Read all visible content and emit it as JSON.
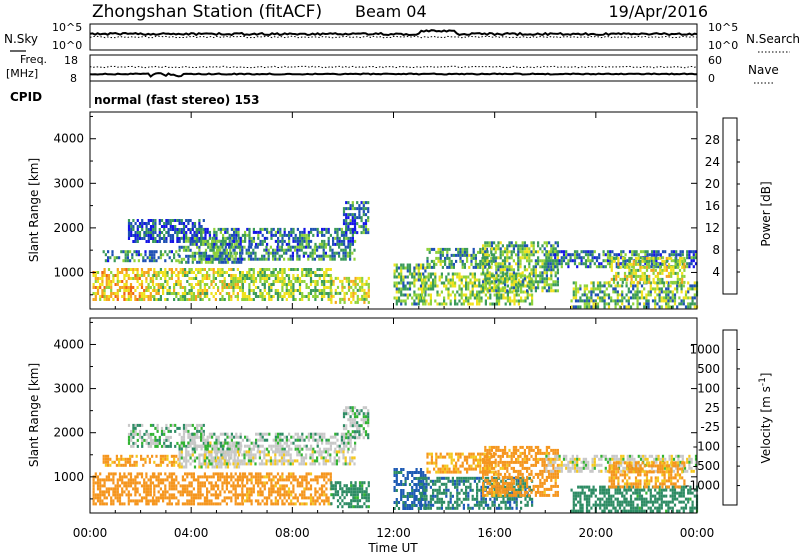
{
  "header": {
    "station": "Zhongshan Station (fitACF)",
    "beam": "Beam 04",
    "date": "19/Apr/2016"
  },
  "top_panels": {
    "nsky": {
      "left_label": "N.Sky",
      "right_label": "N.Search",
      "left_ticks": [
        "10^5",
        "10^0"
      ],
      "right_ticks": [
        "10^5",
        "10^0"
      ]
    },
    "freq": {
      "left_label_1": "Freq.",
      "left_label_2": "[MHz]",
      "right_label": "Nave",
      "left_ticks": [
        "18",
        "8"
      ],
      "right_ticks": [
        "60",
        "0"
      ]
    },
    "cpid": {
      "label": "CPID",
      "text": "normal (fast stereo) 153"
    }
  },
  "power_panel": {
    "ylabel": "Slant Range [km]",
    "yticks": [
      "1000",
      "2000",
      "3000",
      "4000"
    ],
    "colorbar": {
      "label": "Power [dB]",
      "ticks": [
        "4",
        "8",
        "12",
        "16",
        "20",
        "24",
        "28"
      ],
      "colors": [
        "#1414e6",
        "#1e50b4",
        "#3a9a5a",
        "#8fd23a",
        "#f0e21e",
        "#f5a51e",
        "#f06414",
        "#e61414"
      ]
    }
  },
  "velocity_panel": {
    "ylabel": "Slant Range [km]",
    "yticks": [
      "1000",
      "2000",
      "3000",
      "4000"
    ],
    "colorbar": {
      "label": "Velocity [m s",
      "label_sup": "-1",
      "label_end": "]",
      "ticks": [
        "1000",
        "500",
        "100",
        "25",
        "-25",
        "-100",
        "-500",
        "-1000"
      ],
      "colors": [
        "#1414dc",
        "#1e5ab4",
        "#2d8c64",
        "#32b432",
        "#c8c8c8",
        "#f5c81e",
        "#f5961e",
        "#f06414",
        "#e61414"
      ]
    }
  },
  "xaxis": {
    "label": "Time UT",
    "ticks": [
      "00:00",
      "04:00",
      "08:00",
      "12:00",
      "16:00",
      "20:00",
      "00:00"
    ]
  },
  "chart_data": {
    "type": "heatmap",
    "title": "Zhongshan Station (fitACF)",
    "xlabel": "Time UT",
    "ylabel": "Slant Range [km]",
    "xlim_hours": [
      0,
      24
    ],
    "ylim_km": [
      180,
      4600
    ],
    "power_range_db": [
      0,
      30
    ],
    "velocity_range_ms": [
      -1000,
      1000
    ],
    "regions": [
      {
        "t0": 0.1,
        "t1": 2.5,
        "r0": 400,
        "r1": 1100,
        "power": 20,
        "velocity": -300
      },
      {
        "t0": 0.5,
        "t1": 3.5,
        "r0": 1250,
        "r1": 1500,
        "power": 9,
        "velocity": -150
      },
      {
        "t0": 2.5,
        "t1": 6.0,
        "r0": 400,
        "r1": 1100,
        "power": 16,
        "velocity": -300
      },
      {
        "t0": 1.5,
        "t1": 4.5,
        "r0": 1700,
        "r1": 2200,
        "power": 6,
        "velocity": 10
      },
      {
        "t0": 3.5,
        "t1": 6.0,
        "r0": 1200,
        "r1": 1800,
        "power": 10,
        "velocity": 0
      },
      {
        "t0": 4.0,
        "t1": 10.5,
        "r0": 1600,
        "r1": 2000,
        "power": 8,
        "velocity": 5
      },
      {
        "t0": 4.5,
        "t1": 10.5,
        "r0": 1300,
        "r1": 1600,
        "power": 9,
        "velocity": -10
      },
      {
        "t0": 6.0,
        "t1": 9.5,
        "r0": 400,
        "r1": 1100,
        "power": 14,
        "velocity": -200
      },
      {
        "t0": 9.5,
        "t1": 11.0,
        "r0": 300,
        "r1": 900,
        "power": 17,
        "velocity": 50
      },
      {
        "t0": 10.0,
        "t1": 11.0,
        "r0": 1900,
        "r1": 2600,
        "power": 7,
        "velocity": 10
      },
      {
        "t0": 12.0,
        "t1": 13.3,
        "r0": 300,
        "r1": 1200,
        "power": 12,
        "velocity": 150
      },
      {
        "t0": 13.3,
        "t1": 16.0,
        "r0": 1100,
        "r1": 1550,
        "power": 11,
        "velocity": -120
      },
      {
        "t0": 13.0,
        "t1": 17.5,
        "r0": 300,
        "r1": 1000,
        "power": 14,
        "velocity": 80
      },
      {
        "t0": 15.5,
        "t1": 18.5,
        "r0": 600,
        "r1": 1700,
        "power": 12,
        "velocity": -200
      },
      {
        "t0": 18.0,
        "t1": 24.0,
        "r0": 1100,
        "r1": 1500,
        "power": 8,
        "velocity": -10
      },
      {
        "t0": 19.0,
        "t1": 24.0,
        "r0": 200,
        "r1": 800,
        "power": 12,
        "velocity": 60
      },
      {
        "t0": 20.5,
        "t1": 23.5,
        "r0": 800,
        "r1": 1350,
        "power": 16,
        "velocity": -150
      }
    ]
  }
}
